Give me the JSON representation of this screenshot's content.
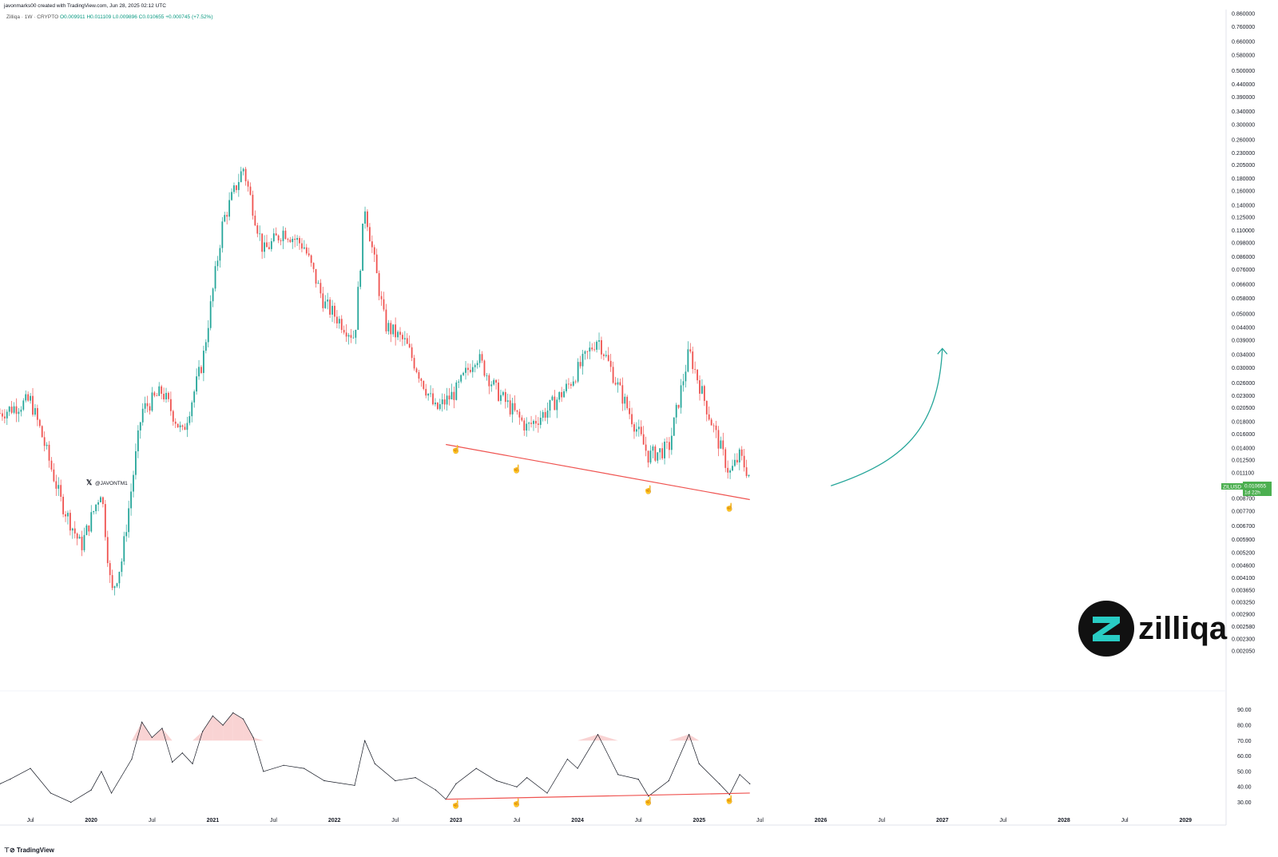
{
  "header": {
    "created_by": "javonmarks00 created with TradingView.com, Jun 28, 2025 02:12 UTC",
    "symbol_line": "Zilliqa · 1W · CRYPTO",
    "ohlc": "O0.009911  H0.011109  L0.009896  C0.010655  +0.000745 (+7.52%)"
  },
  "footer": {
    "brand": "TradingView"
  },
  "watermark": {
    "handle": "@JAVONTM1",
    "icon": "x-logo-icon"
  },
  "logo": {
    "text": "zilliqa",
    "icon": "zilliqa-logo-icon"
  },
  "price_badge": {
    "symbol": "ZILUSD",
    "price": "0.010655",
    "countdown": "1d 22h",
    "color": "#4caf50"
  },
  "colors": {
    "up": "#26a69a",
    "down": "#ef5350",
    "trendline": "#ef5350",
    "arrow": "#26a69a",
    "rsi_line": "#131722",
    "rsi_overbought_fill": "#f8c8c8"
  },
  "chart_data": [
    {
      "type": "candlestick",
      "title": "Zilliqa · 1W · CRYPTO",
      "scale": "log",
      "ylim": [
        0.00205,
        0.86
      ],
      "y_ticks": [
        "0.860000",
        "0.760000",
        "0.660000",
        "0.580000",
        "0.500000",
        "0.440000",
        "0.390000",
        "0.340000",
        "0.300000",
        "0.260000",
        "0.230000",
        "0.205000",
        "0.180000",
        "0.160000",
        "0.140000",
        "0.125000",
        "0.110000",
        "0.098000",
        "0.086000",
        "0.076000",
        "0.066000",
        "0.058000",
        "0.050000",
        "0.044000",
        "0.039000",
        "0.034000",
        "0.030000",
        "0.026000",
        "0.023000",
        "0.020500",
        "0.018000",
        "0.016000",
        "0.014000",
        "0.012500",
        "0.011100",
        "0.009800",
        "0.008700",
        "0.007700",
        "0.006700",
        "0.005900",
        "0.005200",
        "0.004600",
        "0.004100",
        "0.003650",
        "0.003250",
        "0.002900",
        "0.002580",
        "0.002300",
        "0.002050"
      ],
      "x_ticks": [
        "Jul",
        "2020",
        "Jul",
        "2021",
        "Jul",
        "2022",
        "Jul",
        "2023",
        "Jul",
        "2024",
        "Jul",
        "2025",
        "Jul",
        "2026",
        "Jul",
        "2027",
        "Jul",
        "2028",
        "Jul",
        "2029"
      ],
      "xlim": [
        "2019-04",
        "2029-05"
      ],
      "approx_path": [
        {
          "x": "2019-04",
          "y": 0.0195
        },
        {
          "x": "2019-07",
          "y": 0.022
        },
        {
          "x": "2019-08",
          "y": 0.0165
        },
        {
          "x": "2019-10",
          "y": 0.0085
        },
        {
          "x": "2019-12",
          "y": 0.0055
        },
        {
          "x": "2020-02",
          "y": 0.0095
        },
        {
          "x": "2020-03",
          "y": 0.0035
        },
        {
          "x": "2020-04",
          "y": 0.0048
        },
        {
          "x": "2020-06",
          "y": 0.02
        },
        {
          "x": "2020-08",
          "y": 0.024
        },
        {
          "x": "2020-10",
          "y": 0.016
        },
        {
          "x": "2020-12",
          "y": 0.032
        },
        {
          "x": "2021-02",
          "y": 0.12
        },
        {
          "x": "2021-04",
          "y": 0.2
        },
        {
          "x": "2021-06",
          "y": 0.09
        },
        {
          "x": "2021-08",
          "y": 0.11
        },
        {
          "x": "2021-10",
          "y": 0.095
        },
        {
          "x": "2021-12",
          "y": 0.055
        },
        {
          "x": "2022-03",
          "y": 0.04
        },
        {
          "x": "2022-04",
          "y": 0.14
        },
        {
          "x": "2022-06",
          "y": 0.045
        },
        {
          "x": "2022-08",
          "y": 0.038
        },
        {
          "x": "2022-11",
          "y": 0.02
        },
        {
          "x": "2023-01",
          "y": 0.024
        },
        {
          "x": "2023-03",
          "y": 0.034
        },
        {
          "x": "2023-05",
          "y": 0.024
        },
        {
          "x": "2023-08",
          "y": 0.017
        },
        {
          "x": "2023-10",
          "y": 0.02
        },
        {
          "x": "2023-12",
          "y": 0.025
        },
        {
          "x": "2024-03",
          "y": 0.04
        },
        {
          "x": "2024-05",
          "y": 0.025
        },
        {
          "x": "2024-08",
          "y": 0.013
        },
        {
          "x": "2024-10",
          "y": 0.014
        },
        {
          "x": "2024-12",
          "y": 0.035
        },
        {
          "x": "2025-02",
          "y": 0.019
        },
        {
          "x": "2025-04",
          "y": 0.011
        },
        {
          "x": "2025-05",
          "y": 0.013
        },
        {
          "x": "2025-06",
          "y": 0.0107
        }
      ],
      "trendline": {
        "from": {
          "x": "2022-12",
          "y": 0.0145
        },
        "to": {
          "x": "2025-06",
          "y": 0.0086
        }
      },
      "projection_arrow": {
        "from": {
          "x": "2026-02",
          "y": 0.0098
        },
        "to": {
          "x": "2027-01",
          "y": 0.036
        }
      },
      "low_markers": [
        {
          "x": "2023-01",
          "y": 0.0135
        },
        {
          "x": "2023-07",
          "y": 0.0112
        },
        {
          "x": "2024-08",
          "y": 0.0092
        },
        {
          "x": "2025-04",
          "y": 0.0078
        }
      ]
    },
    {
      "type": "line",
      "title": "",
      "ylim": [
        22,
        95
      ],
      "y_ticks": [
        "90.00",
        "80.00",
        "70.00",
        "60.00",
        "50.00",
        "40.00",
        "30.00"
      ],
      "overbought_level": 70,
      "series": [
        {
          "values": [
            {
              "x": "2019-04",
              "y": 42
            },
            {
              "x": "2019-05",
              "y": 45
            },
            {
              "x": "2019-07",
              "y": 52
            },
            {
              "x": "2019-09",
              "y": 36
            },
            {
              "x": "2019-11",
              "y": 30
            },
            {
              "x": "2020-01",
              "y": 38
            },
            {
              "x": "2020-02",
              "y": 50
            },
            {
              "x": "2020-03",
              "y": 36
            },
            {
              "x": "2020-05",
              "y": 58
            },
            {
              "x": "2020-06",
              "y": 82
            },
            {
              "x": "2020-07",
              "y": 72
            },
            {
              "x": "2020-08",
              "y": 78
            },
            {
              "x": "2020-09",
              "y": 56
            },
            {
              "x": "2020-10",
              "y": 62
            },
            {
              "x": "2020-11",
              "y": 55
            },
            {
              "x": "2020-12",
              "y": 76
            },
            {
              "x": "2021-01",
              "y": 86
            },
            {
              "x": "2021-02",
              "y": 80
            },
            {
              "x": "2021-03",
              "y": 88
            },
            {
              "x": "2021-04",
              "y": 84
            },
            {
              "x": "2021-05",
              "y": 72
            },
            {
              "x": "2021-06",
              "y": 50
            },
            {
              "x": "2021-08",
              "y": 54
            },
            {
              "x": "2021-10",
              "y": 52
            },
            {
              "x": "2021-12",
              "y": 44
            },
            {
              "x": "2022-03",
              "y": 41
            },
            {
              "x": "2022-04",
              "y": 70
            },
            {
              "x": "2022-05",
              "y": 55
            },
            {
              "x": "2022-07",
              "y": 44
            },
            {
              "x": "2022-09",
              "y": 46
            },
            {
              "x": "2022-11",
              "y": 38
            },
            {
              "x": "2022-12",
              "y": 32
            },
            {
              "x": "2023-01",
              "y": 42
            },
            {
              "x": "2023-03",
              "y": 52
            },
            {
              "x": "2023-05",
              "y": 44
            },
            {
              "x": "2023-07",
              "y": 40
            },
            {
              "x": "2023-08",
              "y": 46
            },
            {
              "x": "2023-10",
              "y": 36
            },
            {
              "x": "2023-12",
              "y": 58
            },
            {
              "x": "2024-01",
              "y": 52
            },
            {
              "x": "2024-03",
              "y": 74
            },
            {
              "x": "2024-05",
              "y": 48
            },
            {
              "x": "2024-07",
              "y": 45
            },
            {
              "x": "2024-08",
              "y": 34
            },
            {
              "x": "2024-10",
              "y": 44
            },
            {
              "x": "2024-12",
              "y": 74
            },
            {
              "x": "2025-01",
              "y": 55
            },
            {
              "x": "2025-03",
              "y": 42
            },
            {
              "x": "2025-04",
              "y": 35
            },
            {
              "x": "2025-05",
              "y": 48
            },
            {
              "x": "2025-06",
              "y": 42
            }
          ]
        }
      ],
      "trendline": {
        "from": {
          "x": "2022-12",
          "y": 32
        },
        "to": {
          "x": "2025-06",
          "y": 36
        }
      },
      "low_markers": [
        {
          "x": "2023-01",
          "y": 27
        },
        {
          "x": "2023-07",
          "y": 28
        },
        {
          "x": "2024-08",
          "y": 29
        },
        {
          "x": "2025-04",
          "y": 30
        }
      ]
    }
  ]
}
